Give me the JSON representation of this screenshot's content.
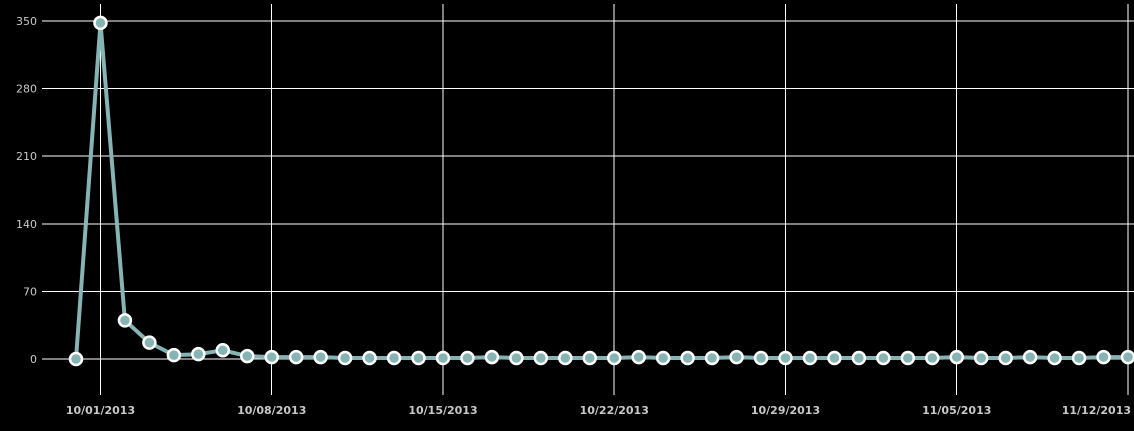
{
  "colors": {
    "background": "#000000",
    "grid": "#ffffff",
    "text": "#c8c8c8",
    "line": "#86b3b3",
    "marker_fill": "#86b3b3",
    "marker_stroke": "#ffffff"
  },
  "chart_data": {
    "type": "line",
    "title": "",
    "xlabel": "",
    "ylabel": "",
    "grid": true,
    "ylim": [
      0,
      350
    ],
    "xlim": [
      "2013-09-30",
      "2013-11-12"
    ],
    "y_ticks": [
      0,
      70,
      140,
      210,
      280,
      350
    ],
    "x_ticks": [
      "10/01/2013",
      "10/08/2013",
      "10/15/2013",
      "10/22/2013",
      "10/29/2013",
      "11/05/2013",
      "11/12/2013"
    ],
    "series": [
      {
        "x": [
          "2013-09-30",
          "2013-10-01",
          "2013-10-02",
          "2013-10-03",
          "2013-10-04",
          "2013-10-05",
          "2013-10-06",
          "2013-10-07",
          "2013-10-08",
          "2013-10-09",
          "2013-10-10",
          "2013-10-11",
          "2013-10-12",
          "2013-10-13",
          "2013-10-14",
          "2013-10-15",
          "2013-10-16",
          "2013-10-17",
          "2013-10-18",
          "2013-10-19",
          "2013-10-20",
          "2013-10-21",
          "2013-10-22",
          "2013-10-23",
          "2013-10-24",
          "2013-10-25",
          "2013-10-26",
          "2013-10-27",
          "2013-10-28",
          "2013-10-29",
          "2013-10-30",
          "2013-10-31",
          "2013-11-01",
          "2013-11-02",
          "2013-11-03",
          "2013-11-04",
          "2013-11-05",
          "2013-11-06",
          "2013-11-07",
          "2013-11-08",
          "2013-11-09",
          "2013-11-10",
          "2013-11-11",
          "2013-11-12"
        ],
        "values": [
          0,
          348,
          40,
          17,
          4,
          5,
          9,
          3,
          2,
          2,
          2,
          1,
          1,
          1,
          1,
          1,
          1,
          2,
          1,
          1,
          1,
          1,
          1,
          2,
          1,
          1,
          1,
          2,
          1,
          1,
          1,
          1,
          1,
          1,
          1,
          1,
          2,
          1,
          1,
          2,
          1,
          1,
          2,
          2
        ]
      }
    ]
  }
}
